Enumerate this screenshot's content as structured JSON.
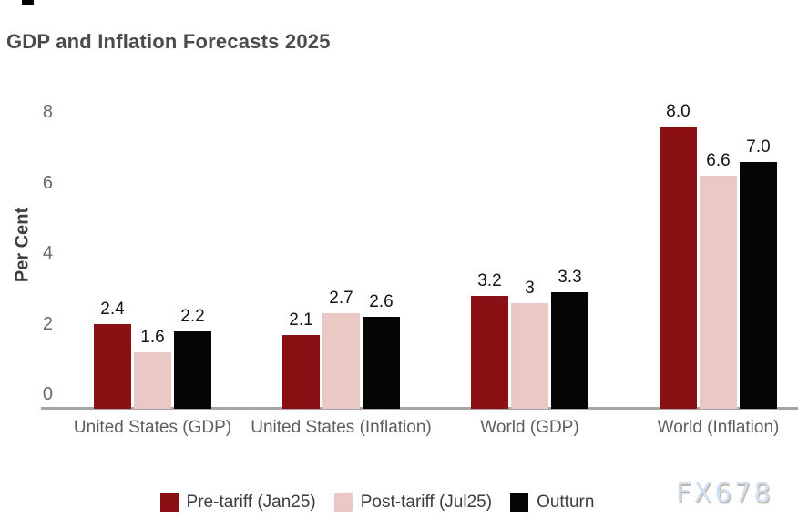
{
  "title": "GDP and Inflation Forecasts 2025",
  "watermark": "FX678",
  "chart_data": {
    "type": "bar",
    "title": "GDP and Inflation Forecasts 2025",
    "xlabel": "",
    "ylabel": "Per Cent",
    "ylim": [
      0,
      8
    ],
    "yticks": [
      "0",
      "2",
      "4",
      "6",
      "8"
    ],
    "grid": false,
    "legend_position": "bottom",
    "axis_line_color": "#a5a5a5",
    "categories": [
      "United States (GDP)",
      "United States (Inflation)",
      "World (GDP)",
      "World (Inflation)"
    ],
    "series": [
      {
        "name": "Pre-tariff (Jan25)",
        "color": "#8a1013",
        "values": [
          2.4,
          2.1,
          3.2,
          8.0
        ],
        "labels": [
          "2.4",
          "2.1",
          "3.2",
          "8.0"
        ]
      },
      {
        "name": "Post-tariff (Jul25)",
        "color": "#eac9c4",
        "values": [
          1.6,
          2.7,
          3.0,
          6.6
        ],
        "labels": [
          "1.6",
          "2.7",
          "3",
          "6.6"
        ]
      },
      {
        "name": "Outturn",
        "color": "#050505",
        "values": [
          2.2,
          2.6,
          3.3,
          7.0
        ],
        "labels": [
          "2.2",
          "2.6",
          "3.3",
          "7.0"
        ]
      }
    ]
  }
}
